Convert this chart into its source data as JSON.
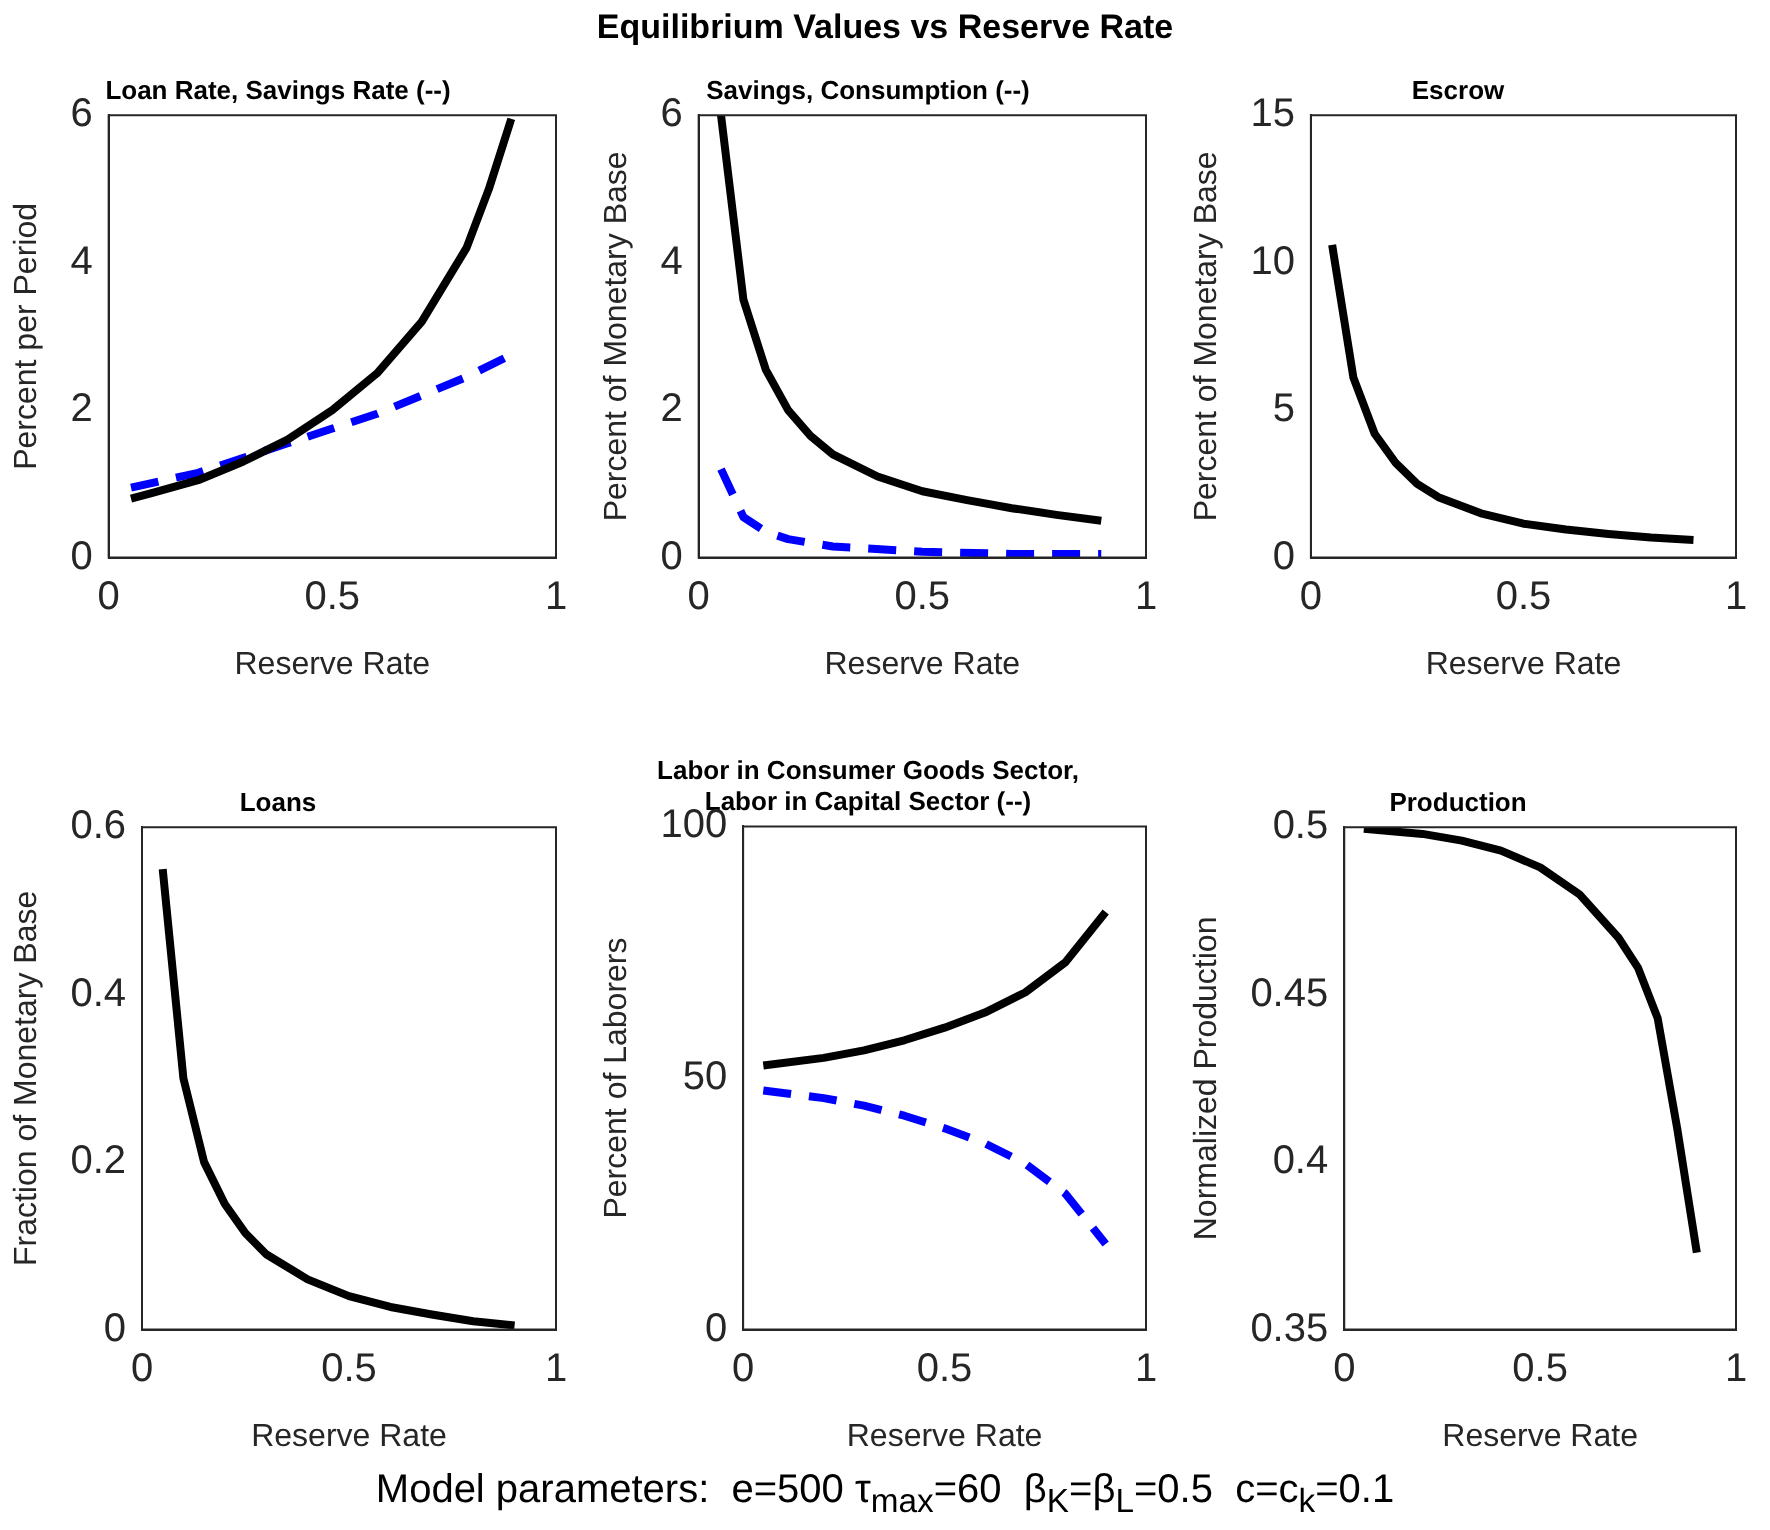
{
  "chart_data": [
    {
      "type": "line",
      "title": "Loan Rate, Savings Rate (--)",
      "xlabel": "Reserve Rate",
      "ylabel": "Percent per Period",
      "xlim": [
        0,
        1
      ],
      "xticks": [
        0,
        0.5,
        1
      ],
      "ylim": [
        0,
        6
      ],
      "yticks": [
        0,
        2,
        4,
        6
      ],
      "grid": false,
      "legend": false,
      "marker": "none",
      "series": [
        {
          "color": "#000000",
          "line_style": "solid",
          "x": [
            0.05,
            0.1,
            0.2,
            0.3,
            0.4,
            0.5,
            0.6,
            0.7,
            0.8,
            0.85,
            0.9
          ],
          "values": [
            0.8,
            0.88,
            1.05,
            1.3,
            1.6,
            2.0,
            2.5,
            3.2,
            4.2,
            5.0,
            5.95
          ]
        },
        {
          "color": "#0000ff",
          "line_style": "dashed",
          "x": [
            0.05,
            0.2,
            0.3,
            0.4,
            0.5,
            0.6,
            0.7,
            0.8,
            0.9
          ],
          "values": [
            0.95,
            1.15,
            1.35,
            1.55,
            1.75,
            1.95,
            2.2,
            2.45,
            2.75
          ]
        }
      ]
    },
    {
      "type": "line",
      "title": "Savings, Consumption (--)",
      "xlabel": "Reserve Rate",
      "ylabel": "Percent of Monetary Base",
      "xlim": [
        0,
        1
      ],
      "xticks": [
        0,
        0.5,
        1
      ],
      "ylim": [
        0,
        6
      ],
      "yticks": [
        0,
        2,
        4,
        6
      ],
      "grid": false,
      "legend": false,
      "marker": "none",
      "series": [
        {
          "color": "#000000",
          "line_style": "solid",
          "x": [
            0.05,
            0.1,
            0.15,
            0.2,
            0.25,
            0.3,
            0.4,
            0.5,
            0.6,
            0.7,
            0.8,
            0.9
          ],
          "values": [
            6.0,
            3.5,
            2.55,
            2.0,
            1.65,
            1.4,
            1.1,
            0.9,
            0.78,
            0.67,
            0.58,
            0.5
          ]
        },
        {
          "color": "#0000ff",
          "line_style": "dashed",
          "x": [
            0.05,
            0.1,
            0.15,
            0.2,
            0.3,
            0.5,
            0.7,
            0.9
          ],
          "values": [
            1.2,
            0.55,
            0.35,
            0.25,
            0.15,
            0.08,
            0.05,
            0.05
          ]
        }
      ]
    },
    {
      "type": "line",
      "title": "Escrow",
      "xlabel": "Reserve Rate",
      "ylabel": "Percent of Monetary Base",
      "xlim": [
        0,
        1
      ],
      "xticks": [
        0,
        0.5,
        1
      ],
      "ylim": [
        0,
        15
      ],
      "yticks": [
        0,
        5,
        10,
        15
      ],
      "grid": false,
      "legend": false,
      "marker": "none",
      "series": [
        {
          "color": "#000000",
          "line_style": "solid",
          "x": [
            0.05,
            0.1,
            0.15,
            0.2,
            0.25,
            0.3,
            0.4,
            0.5,
            0.6,
            0.7,
            0.8,
            0.9
          ],
          "values": [
            10.6,
            6.1,
            4.2,
            3.2,
            2.5,
            2.05,
            1.5,
            1.15,
            0.95,
            0.8,
            0.68,
            0.6
          ]
        }
      ]
    },
    {
      "type": "line",
      "title": "Loans",
      "xlabel": "Reserve Rate",
      "ylabel": "Fraction of Monetary Base",
      "xlim": [
        0,
        1
      ],
      "xticks": [
        0,
        0.5,
        1
      ],
      "ylim": [
        0,
        0.6
      ],
      "yticks": [
        0,
        0.2,
        0.4,
        0.6
      ],
      "grid": false,
      "legend": false,
      "marker": "none",
      "series": [
        {
          "color": "#000000",
          "line_style": "solid",
          "x": [
            0.05,
            0.1,
            0.15,
            0.2,
            0.25,
            0.3,
            0.4,
            0.5,
            0.6,
            0.7,
            0.8,
            0.9
          ],
          "values": [
            0.55,
            0.3,
            0.2,
            0.15,
            0.115,
            0.09,
            0.06,
            0.04,
            0.027,
            0.018,
            0.01,
            0.005
          ]
        }
      ]
    },
    {
      "type": "line",
      "title": "Labor in Consumer Goods Sector,\nLabor in Capital Sector (--)",
      "xlabel": "Reserve Rate",
      "ylabel": "Percent of Laborers",
      "xlim": [
        0,
        1
      ],
      "xticks": [
        0,
        0.5,
        1
      ],
      "ylim": [
        0,
        100
      ],
      "yticks": [
        0,
        50,
        100
      ],
      "grid": false,
      "legend": false,
      "marker": "none",
      "series": [
        {
          "color": "#000000",
          "line_style": "solid",
          "x": [
            0.05,
            0.2,
            0.3,
            0.4,
            0.5,
            0.6,
            0.7,
            0.8,
            0.9
          ],
          "values": [
            52.5,
            54,
            55.5,
            57.5,
            60,
            63,
            67,
            73,
            83
          ]
        },
        {
          "color": "#0000ff",
          "line_style": "dashed",
          "x": [
            0.05,
            0.2,
            0.3,
            0.4,
            0.5,
            0.6,
            0.7,
            0.8,
            0.9
          ],
          "values": [
            47.5,
            46,
            44.5,
            42.5,
            40,
            37,
            33,
            27,
            17
          ]
        }
      ]
    },
    {
      "type": "line",
      "title": "Production",
      "xlabel": "Reserve Rate",
      "ylabel": "Normalized Production",
      "xlim": [
        0,
        1
      ],
      "xticks": [
        0,
        0.5,
        1
      ],
      "ylim": [
        0.35,
        0.5
      ],
      "yticks": [
        0.35,
        0.4,
        0.45,
        0.5
      ],
      "grid": false,
      "legend": false,
      "marker": "none",
      "annotations": [
        "Equilibrium Values vs Reserve Rate",
        "Model parameters:  e=500 τ$_{max}$=60  β$_{K}$=β$_{L}$=0.5  c=c$_{k}$=0.1"
      ],
      "series": [
        {
          "color": "#000000",
          "line_style": "solid",
          "x": [
            0.05,
            0.2,
            0.3,
            0.4,
            0.5,
            0.6,
            0.7,
            0.75,
            0.8,
            0.85,
            0.9
          ],
          "values": [
            0.4995,
            0.498,
            0.496,
            0.493,
            0.488,
            0.48,
            0.467,
            0.458,
            0.443,
            0.41,
            0.373
          ]
        }
      ]
    }
  ]
}
